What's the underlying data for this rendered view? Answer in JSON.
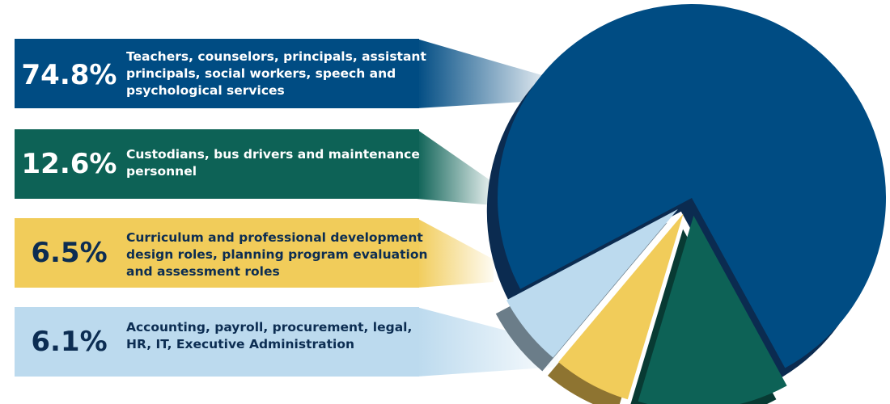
{
  "chart_data": {
    "type": "pie",
    "title": "",
    "slices": [
      {
        "value": 74.8,
        "label": "74.8%",
        "description": "Teachers, counselors, principals, assistant principals, social workers, speech and psychological services",
        "color": "#004c83",
        "side_color": "#0b2b50",
        "text_color": "#ffffff"
      },
      {
        "value": 12.6,
        "label": "12.6%",
        "description": "Custodians, bus drivers and maintenance personnel",
        "color": "#0d6256",
        "side_color": "#083a33",
        "text_color": "#ffffff"
      },
      {
        "value": 6.5,
        "label": "6.5%",
        "description": "Curriculum and professional development design roles, planning program evaluation and assessment roles",
        "color": "#f1cc5a",
        "side_color": "#8e7431",
        "text_color": "#0c2d52"
      },
      {
        "value": 6.1,
        "label": "6.1%",
        "description": "Accounting, payroll, procurement, legal, HR, IT, Executive Administration",
        "color": "#bcdaee",
        "side_color": "#6b7d89",
        "text_color": "#0c2d52"
      }
    ]
  }
}
